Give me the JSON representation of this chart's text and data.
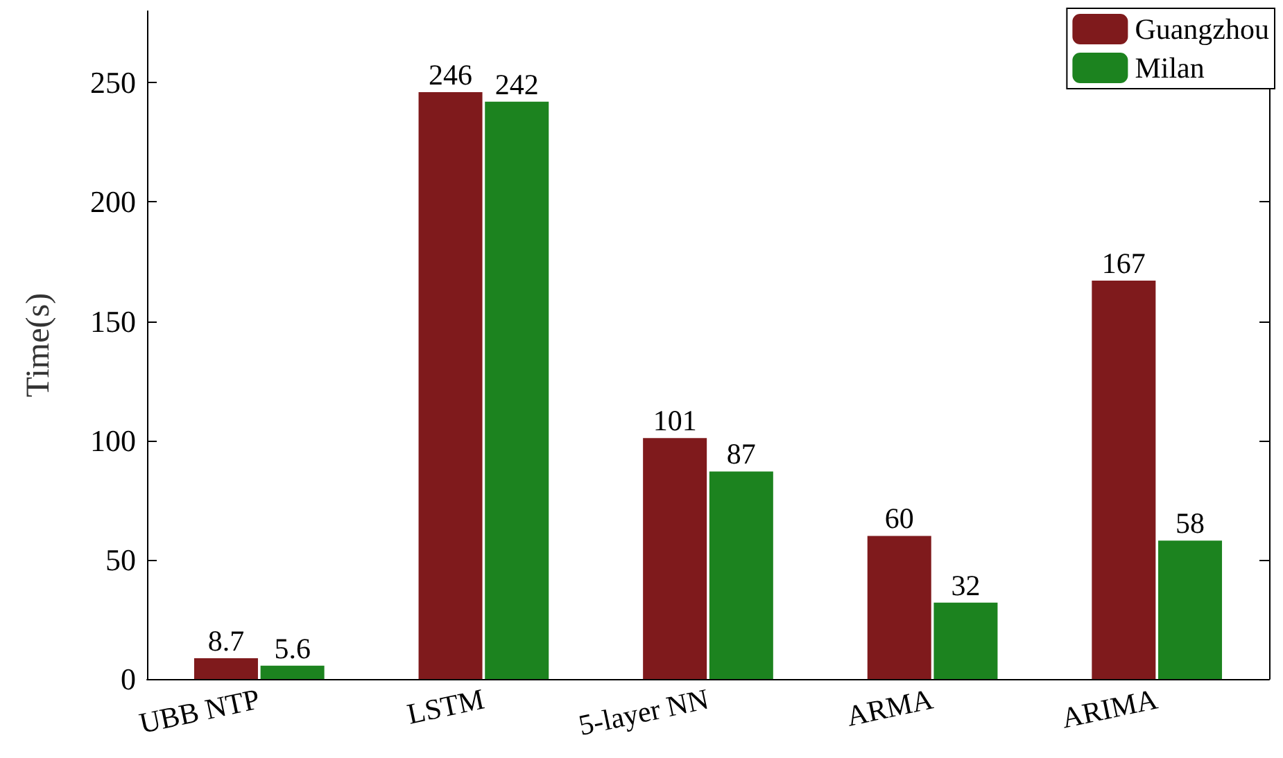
{
  "chart_data": {
    "type": "bar",
    "ylabel": "Time(s)",
    "categories": [
      "UBB NTP",
      "LSTM",
      "5-layer NN",
      "ARMA",
      "ARIMA"
    ],
    "series": [
      {
        "name": "Guangzhou",
        "color": "#7f1a1c",
        "values": [
          8.7,
          246,
          101,
          60,
          167
        ]
      },
      {
        "name": "Milan",
        "color": "#1c831f",
        "values": [
          5.6,
          242,
          87,
          32,
          58
        ]
      }
    ],
    "ylim": [
      0,
      280
    ],
    "yticks": [
      0,
      50,
      100,
      150,
      200,
      250
    ],
    "data_labels": true,
    "legend": "top right",
    "grid": false
  }
}
